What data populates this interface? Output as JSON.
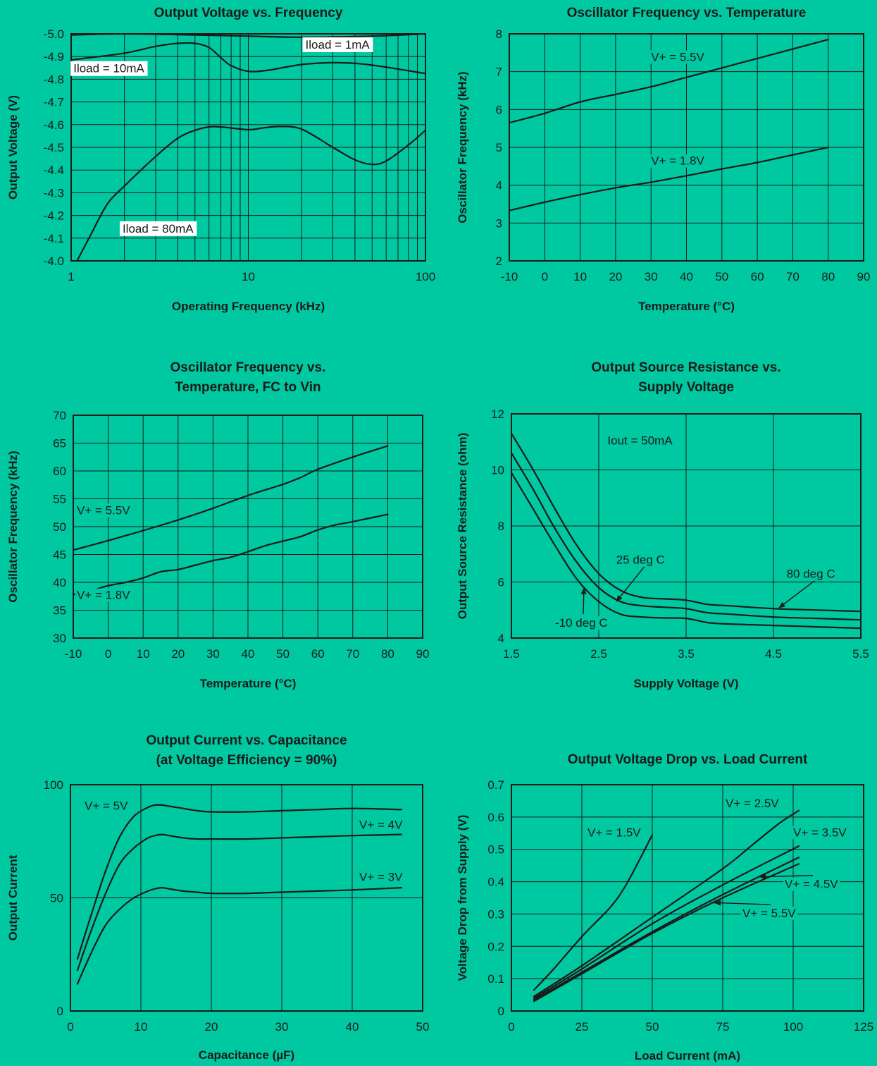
{
  "chart_data": [
    {
      "id": "c1",
      "type": "line",
      "title": [
        "Output Voltage vs. Frequency"
      ],
      "xlabel": "Operating Frequency (kHz)",
      "ylabel": "Output Voltage (V)",
      "xscale": "log",
      "xlim": [
        1,
        100
      ],
      "ylim": [
        -4.0,
        -5.0
      ],
      "xticks": [
        1,
        10,
        100
      ],
      "yticks": [
        -5.0,
        -4.9,
        -4.8,
        -4.7,
        -4.6,
        -4.5,
        -4.4,
        -4.3,
        -4.2,
        -4.1,
        -4.0
      ],
      "ytick_labels": [
        "-5.0",
        "-4.9",
        "-4.8",
        "-4.7",
        "-4.6",
        "-4.5",
        "-4.4",
        "-4.3",
        "-4.2",
        "-4.1",
        "-4.0"
      ],
      "grid": "log-minor",
      "series": [
        {
          "name": "Iload = 1mA",
          "x": [
            1,
            2,
            5,
            10,
            20,
            50,
            100
          ],
          "y": [
            -4.995,
            -5.0,
            -4.995,
            -4.99,
            -4.985,
            -4.99,
            -5.0
          ]
        },
        {
          "name": "Iload = 10mA",
          "x": [
            1,
            2,
            3,
            4,
            5,
            6,
            7,
            8,
            10,
            13,
            20,
            30,
            40,
            50,
            70,
            100
          ],
          "y": [
            -4.885,
            -4.915,
            -4.945,
            -4.958,
            -4.958,
            -4.94,
            -4.895,
            -4.86,
            -4.835,
            -4.84,
            -4.865,
            -4.873,
            -4.87,
            -4.862,
            -4.845,
            -4.825
          ]
        },
        {
          "name": "Iload = 80mA",
          "x": [
            1.08,
            1.3,
            1.6,
            2,
            3,
            4,
            5,
            6,
            7,
            10,
            12,
            15,
            20,
            30,
            40,
            50,
            60,
            80,
            100
          ],
          "y": [
            -4.0,
            -4.12,
            -4.25,
            -4.33,
            -4.46,
            -4.54,
            -4.575,
            -4.59,
            -4.59,
            -4.578,
            -4.585,
            -4.592,
            -4.58,
            -4.5,
            -4.445,
            -4.425,
            -4.44,
            -4.51,
            -4.575
          ]
        }
      ],
      "annotations": [
        {
          "text": "Iload = 1mA",
          "x": 21,
          "y": -4.935
        },
        {
          "text": "Iload = 10mA",
          "x": 1.03,
          "y": -4.83
        },
        {
          "text": "Iload = 80mA",
          "x": 1.95,
          "y": -4.125
        }
      ]
    },
    {
      "id": "c2",
      "type": "line",
      "title": [
        "Oscillator Frequency vs. Temperature"
      ],
      "xlabel": "Temperature (°C)",
      "ylabel": "Oscillator Frequency (kHz)",
      "xlim": [
        -10,
        90
      ],
      "ylim": [
        2,
        8
      ],
      "xticks": [
        -10,
        0,
        10,
        20,
        30,
        40,
        50,
        60,
        70,
        80,
        90
      ],
      "yticks": [
        2,
        3,
        4,
        5,
        6,
        7,
        8
      ],
      "grid": true,
      "series": [
        {
          "name": "V+ = 5.5V",
          "x": [
            -10,
            0,
            10,
            20,
            30,
            40,
            50,
            60,
            70,
            80
          ],
          "y": [
            5.65,
            5.9,
            6.2,
            6.4,
            6.6,
            6.85,
            7.1,
            7.35,
            7.6,
            7.85
          ]
        },
        {
          "name": "V+ = 1.8V",
          "x": [
            -10,
            0,
            10,
            20,
            30,
            40,
            50,
            60,
            70,
            80
          ],
          "y": [
            3.33,
            3.55,
            3.75,
            3.93,
            4.08,
            4.25,
            4.43,
            4.6,
            4.8,
            5.0
          ]
        }
      ],
      "annotations": [
        {
          "text": "V+ = 5.5V",
          "x": 30,
          "y": 7.28
        },
        {
          "text": "V+ = 1.8V",
          "x": 30,
          "y": 4.54
        }
      ]
    },
    {
      "id": "c3",
      "type": "line",
      "title": [
        "Oscillator Frequency vs.",
        "Temperature, FC to Vin"
      ],
      "xlabel": "Temperature (°C)",
      "ylabel": "Oscillator Frequency (kHz)",
      "xlim": [
        -10,
        90
      ],
      "ylim": [
        30,
        70
      ],
      "xticks": [
        -10,
        0,
        10,
        20,
        30,
        40,
        50,
        60,
        70,
        80,
        90
      ],
      "yticks": [
        30,
        35,
        40,
        45,
        50,
        55,
        60,
        65,
        70
      ],
      "grid": true,
      "series": [
        {
          "name": "V+ = 5.5V",
          "x": [
            -10,
            0,
            10,
            20,
            30,
            40,
            50,
            55,
            60,
            70,
            80
          ],
          "y": [
            45.8,
            47.5,
            49.3,
            51.2,
            53.3,
            55.6,
            57.6,
            58.8,
            60.3,
            62.5,
            64.5
          ]
        },
        {
          "name": "V+ = 1.8V",
          "x": [
            -10,
            -5,
            0,
            5,
            10,
            15,
            20,
            25,
            30,
            35,
            40,
            45,
            50,
            55,
            60,
            65,
            70,
            80
          ],
          "y": [
            37.8,
            38.5,
            39.4,
            40.0,
            40.8,
            41.9,
            42.3,
            43.1,
            43.9,
            44.5,
            45.5,
            46.6,
            47.4,
            48.2,
            49.4,
            50.3,
            50.9,
            52.2
          ]
        }
      ],
      "annotations": [
        {
          "text": "V+ = 5.5V",
          "x": -9,
          "y": 52.2
        },
        {
          "text": "V+ = 1.8V",
          "x": -9,
          "y": 37.0
        }
      ]
    },
    {
      "id": "c4",
      "type": "line",
      "title": [
        "Output Source Resistance vs.",
        "Supply Voltage"
      ],
      "xlabel": "Supply Voltage (V)",
      "ylabel": "Output Source Resistance (ohm)",
      "xlim": [
        1.5,
        5.5
      ],
      "ylim": [
        4,
        12
      ],
      "xticks": [
        1.5,
        2.5,
        3.5,
        4.5,
        5.5
      ],
      "yticks": [
        4,
        6,
        8,
        10,
        12
      ],
      "yticks_grid": [
        4,
        6,
        8,
        10,
        12
      ],
      "ygrid_step": 2,
      "grid": true,
      "series": [
        {
          "name": "80 deg C",
          "x": [
            1.5,
            1.75,
            2.0,
            2.25,
            2.5,
            2.75,
            3.0,
            3.25,
            3.5,
            3.75,
            4.0,
            4.5,
            5.0,
            5.5
          ],
          "y": [
            11.3,
            10.0,
            8.6,
            7.3,
            6.3,
            5.7,
            5.45,
            5.4,
            5.35,
            5.2,
            5.15,
            5.05,
            5.0,
            4.95
          ]
        },
        {
          "name": "25 deg C",
          "x": [
            1.5,
            1.75,
            2.0,
            2.25,
            2.5,
            2.75,
            3.0,
            3.25,
            3.5,
            3.75,
            4.0,
            4.5,
            5.0,
            5.5
          ],
          "y": [
            10.6,
            9.3,
            7.9,
            6.7,
            5.8,
            5.3,
            5.15,
            5.1,
            5.05,
            4.9,
            4.85,
            4.75,
            4.7,
            4.65
          ]
        },
        {
          "name": "-10 deg C",
          "x": [
            1.5,
            1.75,
            2.0,
            2.25,
            2.5,
            2.75,
            3.0,
            3.25,
            3.5,
            3.75,
            4.0,
            4.5,
            5.0,
            5.5
          ],
          "y": [
            9.9,
            8.6,
            7.3,
            6.1,
            5.3,
            4.85,
            4.75,
            4.72,
            4.7,
            4.55,
            4.5,
            4.45,
            4.4,
            4.35
          ]
        }
      ],
      "annotations": [
        {
          "text": "Iout = 50mA",
          "x": 2.6,
          "y": 10.9
        },
        {
          "text": "25 deg C",
          "x": 2.7,
          "y": 6.65,
          "arrow_to": [
            2.7,
            5.3
          ]
        },
        {
          "text": "80 deg C",
          "x": 4.65,
          "y": 6.15,
          "arrow_to": [
            4.56,
            5.07
          ]
        },
        {
          "text": "-10 deg C",
          "x": 2.0,
          "y": 4.4,
          "arrow_to": [
            2.33,
            5.8
          ]
        }
      ]
    },
    {
      "id": "c5",
      "type": "line",
      "title": [
        "Output Current vs. Capacitance",
        "(at Voltage Efficiency = 90%)"
      ],
      "xlabel": "Capacitance (µF)",
      "ylabel": "Output Current",
      "xlim": [
        0,
        50
      ],
      "ylim": [
        0,
        100
      ],
      "xticks": [
        0,
        10,
        20,
        30,
        40,
        50
      ],
      "yticks": [
        0,
        50,
        100
      ],
      "grid": true,
      "series": [
        {
          "name": "V+ = 5V",
          "x": [
            1,
            3,
            5,
            7,
            9,
            11,
            12,
            13,
            14,
            16,
            18,
            20,
            25,
            30,
            35,
            40,
            47
          ],
          "y": [
            23,
            43,
            62,
            77,
            86,
            90,
            91,
            91,
            90.5,
            89.5,
            88.5,
            88,
            88,
            88.5,
            89,
            89.5,
            89
          ]
        },
        {
          "name": "V+ = 4V",
          "x": [
            1,
            3,
            5,
            7,
            9,
            11,
            12,
            13,
            14,
            16,
            18,
            20,
            25,
            30,
            35,
            40,
            47
          ],
          "y": [
            18,
            36,
            52,
            65,
            72,
            76.5,
            77.5,
            78,
            77.5,
            76.5,
            76,
            76,
            76,
            76.5,
            77,
            77.5,
            78
          ]
        },
        {
          "name": "V+ = 3V",
          "x": [
            1,
            3,
            5,
            7,
            9,
            11,
            12,
            13,
            14,
            16,
            18,
            20,
            25,
            30,
            35,
            40,
            47
          ],
          "y": [
            12,
            26,
            38,
            45,
            50,
            53,
            54,
            54.5,
            54,
            53,
            52.5,
            52,
            52,
            52.5,
            53,
            53.5,
            54.5
          ]
        }
      ],
      "annotations": [
        {
          "text": "V+ = 5V",
          "x": 2,
          "y": 89
        },
        {
          "text": "V+ = 4V",
          "x": 41,
          "y": 80.5
        },
        {
          "text": "V+ = 3V",
          "x": 41,
          "y": 57.5
        }
      ]
    },
    {
      "id": "c6",
      "type": "line",
      "title": [
        "Output Voltage Drop vs. Load Current"
      ],
      "xlabel": "Load Current (mA)",
      "ylabel": "Voltage Drop from Supply (V)",
      "xlim": [
        0,
        125
      ],
      "ylim": [
        0,
        0.7
      ],
      "xticks": [
        0,
        25,
        50,
        75,
        100,
        125
      ],
      "yticks": [
        0,
        0.1,
        0.2,
        0.3,
        0.4,
        0.5,
        0.6,
        0.7
      ],
      "grid": true,
      "series": [
        {
          "name": "V+ = 1.5V",
          "x": [
            8,
            15,
            25,
            35,
            40,
            45,
            50
          ],
          "y": [
            0.065,
            0.13,
            0.23,
            0.32,
            0.38,
            0.46,
            0.545
          ]
        },
        {
          "name": "V+ = 2.5V",
          "x": [
            8,
            25,
            50,
            75,
            85,
            95,
            102
          ],
          "y": [
            0.045,
            0.14,
            0.29,
            0.44,
            0.51,
            0.58,
            0.62
          ]
        },
        {
          "name": "V+ = 3.5V",
          "x": [
            8,
            25,
            50,
            75,
            102
          ],
          "y": [
            0.04,
            0.13,
            0.27,
            0.39,
            0.51
          ]
        },
        {
          "name": "V+ = 4.5V",
          "x": [
            8,
            25,
            50,
            75,
            102
          ],
          "y": [
            0.035,
            0.12,
            0.245,
            0.36,
            0.475
          ]
        },
        {
          "name": "V+ = 5.5V",
          "x": [
            8,
            25,
            50,
            75,
            102
          ],
          "y": [
            0.03,
            0.115,
            0.24,
            0.35,
            0.455
          ]
        }
      ],
      "annotations": [
        {
          "text": "V+ = 1.5V",
          "x": 27,
          "y": 0.54
        },
        {
          "text": "V+ = 2.5V",
          "x": 76,
          "y": 0.63
        },
        {
          "text": "V+ = 3.5V",
          "x": 100,
          "y": 0.54
        },
        {
          "text": "V+ = 4.5V",
          "x": 97,
          "y": 0.38,
          "arrow_to": [
            88,
            0.415
          ]
        },
        {
          "text": "V+ = 5.5V",
          "x": 82,
          "y": 0.29,
          "arrow_to": [
            72,
            0.335
          ]
        }
      ]
    }
  ]
}
